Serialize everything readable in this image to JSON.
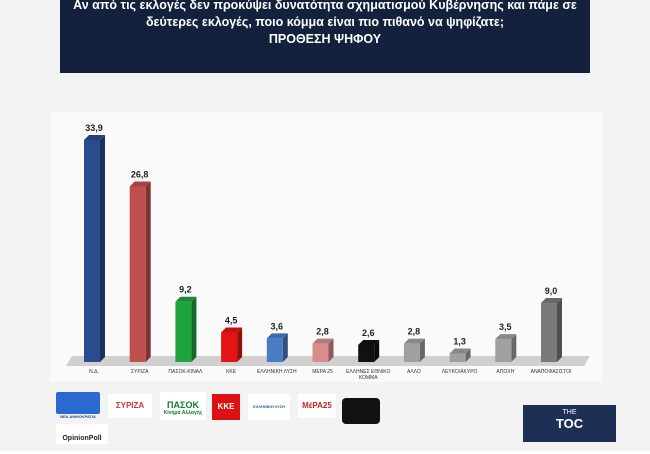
{
  "chart_data": {
    "type": "bar3d",
    "title_lines": [
      "Αν από τις εκλογές δεν προκύψει δυνατότητα σχηματισμού Κυβέρνησης και πάμε σε",
      "δεύτερες εκλογές, ποιο κόμμα είναι πιο πιθανό να ψηφίζατε;"
    ],
    "subtitle": "ΠΡΟΘΕΣΗ ΨΗΦΟΥ",
    "categories": [
      "Ν.Δ.",
      "ΣΥΡΙΖΑ",
      "ΠΑΣΟΚ-ΚΙΝΑΛ",
      "ΚΚΕ",
      "ΕΛΛΗΝΙΚΗ ΛΥΣΗ",
      "ΜΕΡΑ 25",
      "ΕΛΛΗΝΕΣ ΕΘΝΙΚΟ ΚΟΜΜΑ",
      "ΑΛΛΟ",
      "ΛΕΥΚΟ/ΑΚΥΡΟ",
      "ΑΠΟΧΗ",
      "ΑΝΑΠΟΦΑΣΙΣΤΟΙ"
    ],
    "values": [
      33.9,
      26.8,
      9.2,
      4.5,
      3.6,
      2.8,
      2.6,
      2.8,
      1.3,
      3.5,
      9.0
    ],
    "value_labels": [
      "33,9",
      "26,8",
      "9,2",
      "4,5",
      "3,6",
      "2,8",
      "2,6",
      "2,8",
      "1,3",
      "3,5",
      "9,0"
    ],
    "colors": [
      "#2b4c8c",
      "#c0504d",
      "#1fa33d",
      "#e51414",
      "#4a7cc4",
      "#d98c8c",
      "#111111",
      "#a0a0a0",
      "#a0a0a0",
      "#a0a0a0",
      "#7a7a7a"
    ]
  },
  "logos": {
    "nd": "ΝΕΑ ΔΗΜΟΚΡΑΤΙΑ",
    "syriza": "ΣΥΡΙΖΑ",
    "pasok": "ΠΑΣΟΚ",
    "pasok_sub": "Κίνημα Αλλαγής",
    "kke": "ΚΚΕ",
    "el_lysi": "ΕΛΛΗΝΙΚΗ ΛΥΣΗ",
    "mera25": "ΜέΡΑ25",
    "opinion": "OpinionPoll",
    "toc_top": "THE",
    "toc": "TOC"
  }
}
